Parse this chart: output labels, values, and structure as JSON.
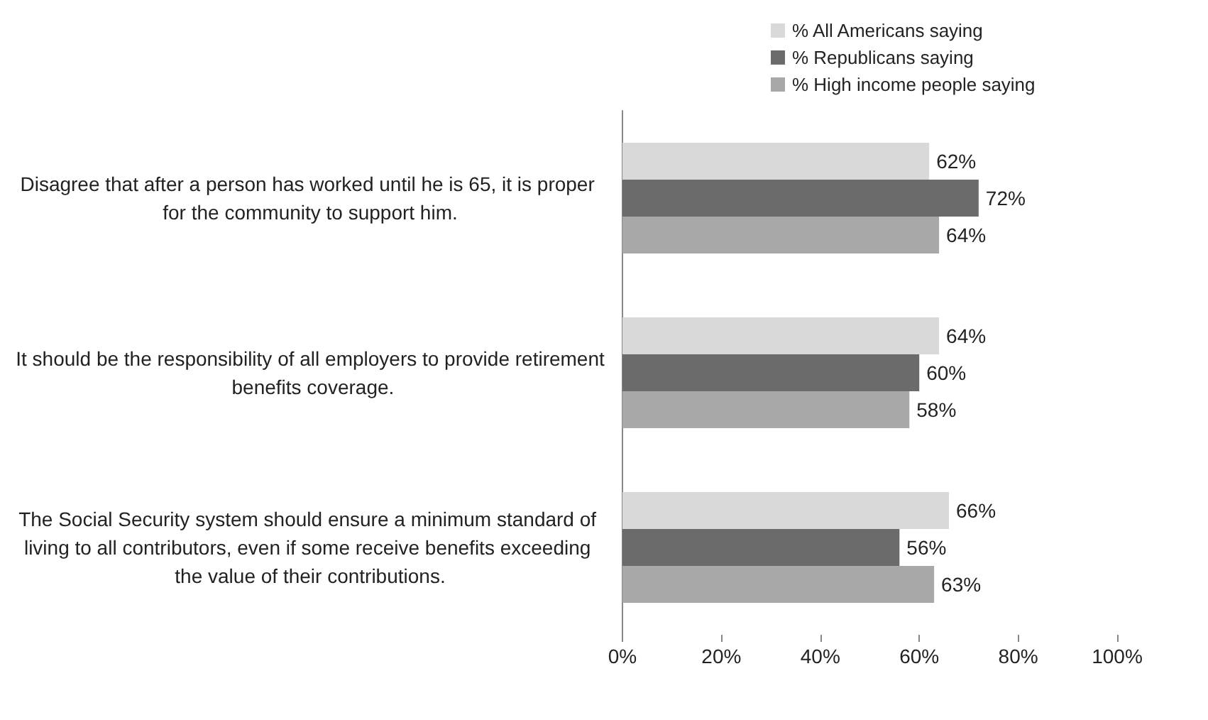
{
  "chart_data": {
    "type": "bar",
    "orientation": "horizontal",
    "categories": [
      "Disagree that after a person has worked until he is 65, it is proper for the community to support him.",
      "It should be the responsibility of all employers to provide retirement benefits coverage.",
      "The Social Security system should ensure a minimum standard of living to all contributors, even if some receive benefits exceeding the value of their contributions."
    ],
    "series": [
      {
        "name": "% All Americans saying",
        "color": "#d9d9d9",
        "values": [
          62,
          64,
          66
        ],
        "value_labels": [
          "62%",
          "64%",
          "66%"
        ]
      },
      {
        "name": "% Republicans saying",
        "color": "#6b6b6b",
        "values": [
          72,
          60,
          56
        ],
        "value_labels": [
          "72%",
          "60%",
          "56%"
        ]
      },
      {
        "name": "% High income people saying",
        "color": "#a8a8a8",
        "values": [
          64,
          58,
          63
        ],
        "value_labels": [
          "64%",
          "58%",
          "63%"
        ]
      }
    ],
    "xlim": [
      0,
      100
    ],
    "xticks": [
      {
        "value": 0,
        "label": "0%"
      },
      {
        "value": 20,
        "label": "20%"
      },
      {
        "value": 40,
        "label": "40%"
      },
      {
        "value": 60,
        "label": "60%"
      },
      {
        "value": 80,
        "label": "80%"
      },
      {
        "value": 100,
        "label": "100%"
      }
    ],
    "grid": false,
    "legend": "top right"
  }
}
